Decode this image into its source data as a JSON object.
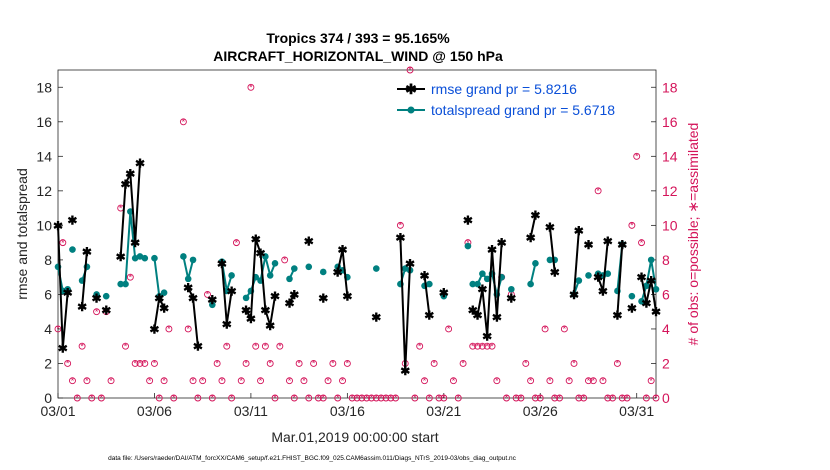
{
  "chart_data": {
    "type": "line",
    "title": "Tropics 374 / 393 = 95.165%",
    "subtitle": "AIRCRAFT_HORIZONTAL_WIND @ 150 hPa",
    "xlabel": "Mar.01,2019 00:00:00 start",
    "ylabel_left": "rmse and totalspread",
    "ylabel_right": "# of obs: o=possible; ∗=assimilated",
    "xlim": [
      1,
      32
    ],
    "ylim_left": [
      0,
      19
    ],
    "ylim_right": [
      0,
      19
    ],
    "x_tick_labels": [
      "03/01",
      "03/06",
      "03/11",
      "03/16",
      "03/21",
      "03/26",
      "03/31"
    ],
    "x_tick_values": [
      1,
      6,
      11,
      16,
      21,
      26,
      31
    ],
    "y_ticks_left": [
      0,
      2,
      4,
      6,
      8,
      10,
      12,
      14,
      16,
      18
    ],
    "y_ticks_right": [
      0,
      2,
      4,
      6,
      8,
      10,
      12,
      14,
      16,
      18
    ],
    "grid": false,
    "legend_position": "top-right",
    "colors": {
      "rmse": "#000000",
      "totalspread": "#008080",
      "obs": "#d4145a",
      "legend_text": "#0a4fd8"
    },
    "series": [
      {
        "name": "rmse grand pr = 5.8216",
        "segments": [
          {
            "x": [
              1.0,
              1.25,
              1.5
            ],
            "y": [
              10.0,
              2.9,
              6.1
            ]
          },
          {
            "x": [
              1.75
            ],
            "y": [
              10.3
            ]
          },
          {
            "x": [
              2.25,
              2.5
            ],
            "y": [
              5.3,
              8.5
            ]
          },
          {
            "x": [
              3.0
            ],
            "y": [
              5.8
            ]
          },
          {
            "x": [
              3.5
            ],
            "y": [
              5.1
            ]
          },
          {
            "x": [
              4.25,
              4.5,
              4.75,
              5.0,
              5.25
            ],
            "y": [
              8.2,
              12.4,
              13.0,
              9.0,
              13.6
            ]
          },
          {
            "x": [
              6.0,
              6.25,
              6.5
            ],
            "y": [
              4.0,
              5.8,
              5.2
            ]
          },
          {
            "x": [
              7.75,
              8.0,
              8.25
            ],
            "y": [
              6.4,
              5.8,
              3.0
            ]
          },
          {
            "x": [
              9.0
            ],
            "y": [
              5.7
            ]
          },
          {
            "x": [
              9.5,
              9.75,
              10.0
            ],
            "y": [
              7.8,
              4.3,
              6.2
            ]
          },
          {
            "x": [
              10.75,
              11.0,
              11.25,
              11.5,
              11.75,
              12.0,
              12.25
            ],
            "y": [
              5.1,
              4.6,
              9.2,
              8.4,
              5.1,
              4.2,
              5.9
            ]
          },
          {
            "x": [
              13.0,
              13.25
            ],
            "y": [
              5.5,
              6.0
            ]
          },
          {
            "x": [
              14.0
            ],
            "y": [
              9.1
            ]
          },
          {
            "x": [
              14.75
            ],
            "y": [
              5.8
            ]
          },
          {
            "x": [
              15.5,
              15.75,
              16.0
            ],
            "y": [
              7.3,
              8.6,
              5.9
            ]
          },
          {
            "x": [
              17.5
            ],
            "y": [
              4.7
            ]
          },
          {
            "x": [
              18.75,
              19.0,
              19.25
            ],
            "y": [
              9.3,
              1.6,
              7.8
            ]
          },
          {
            "x": [
              20.0,
              20.25
            ],
            "y": [
              7.1,
              4.8
            ]
          },
          {
            "x": [
              21.0
            ],
            "y": [
              6.1
            ]
          },
          {
            "x": [
              22.25
            ],
            "y": [
              10.3
            ]
          },
          {
            "x": [
              22.5,
              22.75,
              23.0,
              23.25,
              23.5,
              23.75,
              24.0
            ],
            "y": [
              5.1,
              4.8,
              6.3,
              3.6,
              8.6,
              4.7,
              9.0
            ]
          },
          {
            "x": [
              24.5
            ],
            "y": [
              5.8
            ]
          },
          {
            "x": [
              25.5,
              25.75
            ],
            "y": [
              9.3,
              10.6
            ]
          },
          {
            "x": [
              26.5,
              26.75
            ],
            "y": [
              9.9,
              7.3
            ]
          },
          {
            "x": [
              27.75,
              28.0
            ],
            "y": [
              6.0,
              9.7
            ]
          },
          {
            "x": [
              28.5
            ],
            "y": [
              8.9
            ]
          },
          {
            "x": [
              29.0,
              29.25,
              29.5
            ],
            "y": [
              7.0,
              6.2,
              9.1
            ]
          },
          {
            "x": [
              30.0,
              30.25
            ],
            "y": [
              4.8,
              8.9
            ]
          },
          {
            "x": [
              30.75
            ],
            "y": [
              5.2
            ]
          },
          {
            "x": [
              31.25,
              31.5,
              31.75,
              32.0
            ],
            "y": [
              7.0,
              5.5,
              6.8,
              5.0
            ]
          }
        ]
      },
      {
        "name": "totalspread grand pr = 5.6718",
        "segments": [
          {
            "x": [
              1.0,
              1.25,
              1.5
            ],
            "y": [
              7.6,
              6.2,
              6.3
            ]
          },
          {
            "x": [
              1.75
            ],
            "y": [
              8.6
            ]
          },
          {
            "x": [
              2.25,
              2.5
            ],
            "y": [
              6.8,
              7.6
            ]
          },
          {
            "x": [
              3.0
            ],
            "y": [
              6.0
            ]
          },
          {
            "x": [
              3.5
            ],
            "y": [
              5.9
            ]
          },
          {
            "x": [
              4.25,
              4.5,
              4.75,
              5.0,
              5.25,
              5.5
            ],
            "y": [
              6.6,
              6.6,
              10.8,
              8.1,
              8.2,
              8.1
            ]
          },
          {
            "x": [
              6.0,
              6.25,
              6.5
            ],
            "y": [
              8.1,
              5.9,
              6.1
            ]
          },
          {
            "x": [
              7.5,
              7.75,
              8.0
            ],
            "y": [
              8.2,
              6.9,
              8.0
            ]
          },
          {
            "x": [
              9.0
            ],
            "y": [
              5.4
            ]
          },
          {
            "x": [
              9.5,
              9.75,
              10.0
            ],
            "y": [
              7.9,
              6.2,
              7.1
            ]
          },
          {
            "x": [
              10.75,
              11.0,
              11.25,
              11.5,
              11.75,
              12.0,
              12.25
            ],
            "y": [
              5.8,
              6.2,
              7.0,
              6.8,
              8.2,
              7.1,
              7.8
            ]
          },
          {
            "x": [
              13.0,
              13.25
            ],
            "y": [
              6.9,
              7.5
            ]
          },
          {
            "x": [
              14.0
            ],
            "y": [
              7.6
            ]
          },
          {
            "x": [
              14.75
            ],
            "y": [
              7.3
            ]
          },
          {
            "x": [
              15.5,
              15.75,
              16.0
            ],
            "y": [
              7.6,
              7.4,
              7.0
            ]
          },
          {
            "x": [
              17.5
            ],
            "y": [
              7.5
            ]
          },
          {
            "x": [
              18.75,
              19.0,
              19.25
            ],
            "y": [
              6.6,
              7.5,
              7.4
            ]
          },
          {
            "x": [
              20.0,
              20.25
            ],
            "y": [
              6.5,
              6.6
            ]
          },
          {
            "x": [
              21.0
            ],
            "y": [
              5.9
            ]
          },
          {
            "x": [
              22.25
            ],
            "y": [
              8.8
            ]
          },
          {
            "x": [
              22.5,
              22.75,
              23.0,
              23.25,
              23.5,
              23.75,
              24.0
            ],
            "y": [
              6.6,
              6.6,
              7.2,
              6.9,
              7.2,
              6.0,
              7.0
            ]
          },
          {
            "x": [
              24.5
            ],
            "y": [
              6.3
            ]
          },
          {
            "x": [
              25.5,
              25.75
            ],
            "y": [
              6.6,
              7.8
            ]
          },
          {
            "x": [
              26.5,
              26.75
            ],
            "y": [
              8.0,
              8.0
            ]
          },
          {
            "x": [
              27.75,
              28.0
            ],
            "y": [
              6.0,
              6.8
            ]
          },
          {
            "x": [
              28.5
            ],
            "y": [
              7.1
            ]
          },
          {
            "x": [
              29.0,
              29.25,
              29.5
            ],
            "y": [
              7.2,
              7.1,
              7.2
            ]
          },
          {
            "x": [
              30.0,
              30.25
            ],
            "y": [
              6.2,
              8.9
            ]
          },
          {
            "x": [
              30.75
            ],
            "y": [
              5.9
            ]
          },
          {
            "x": [
              31.25,
              31.5,
              31.75,
              32.0
            ],
            "y": [
              5.6,
              6.5,
              8.0,
              6.3
            ]
          }
        ]
      },
      {
        "name": "obs possible",
        "axis": "right",
        "marker": "circle",
        "x": [
          1.0,
          1.25,
          1.5,
          1.75,
          2.0,
          2.25,
          2.5,
          2.75,
          3.0,
          3.25,
          3.5,
          3.75,
          4.25,
          4.5,
          4.75,
          5.0,
          5.25,
          5.5,
          5.75,
          6.0,
          6.25,
          6.5,
          6.75,
          7.0,
          7.5,
          7.75,
          8.0,
          8.25,
          8.5,
          8.75,
          9.0,
          9.25,
          9.5,
          9.75,
          10.0,
          10.25,
          10.5,
          10.75,
          11.0,
          11.25,
          11.5,
          11.75,
          12.0,
          12.25,
          12.5,
          12.75,
          13.0,
          13.25,
          13.5,
          13.75,
          14.0,
          14.25,
          14.5,
          14.75,
          15.0,
          15.25,
          15.5,
          15.75,
          16.0,
          16.25,
          16.5,
          16.75,
          17.0,
          17.25,
          17.5,
          17.75,
          18.0,
          18.25,
          18.5,
          18.75,
          19.0,
          19.25,
          19.5,
          19.75,
          20.0,
          20.25,
          20.5,
          20.75,
          21.0,
          21.25,
          21.5,
          21.75,
          22.0,
          22.25,
          22.5,
          22.75,
          23.0,
          23.25,
          23.5,
          23.75,
          24.0,
          24.25,
          24.5,
          24.75,
          25.0,
          25.25,
          25.5,
          25.75,
          26.0,
          26.25,
          26.5,
          26.75,
          27.0,
          27.25,
          27.5,
          27.75,
          28.0,
          28.25,
          28.5,
          28.75,
          29.0,
          29.25,
          29.5,
          29.75,
          30.0,
          30.25,
          30.5,
          30.75,
          31.0,
          31.25,
          31.5,
          31.75,
          32.0
        ],
        "y": [
          4,
          9,
          2,
          1,
          0,
          3,
          1,
          0,
          5,
          0,
          5,
          1,
          11,
          3,
          7,
          2,
          2,
          2,
          1,
          2,
          0,
          1,
          4,
          0,
          16,
          4,
          1,
          0,
          1,
          6,
          0,
          2,
          1,
          3,
          0,
          9,
          1,
          2,
          18,
          3,
          1,
          3,
          2,
          0,
          3,
          8,
          1,
          0,
          2,
          1,
          0,
          2,
          0,
          0,
          1,
          2,
          0,
          1,
          2,
          0,
          0,
          0,
          0,
          0,
          0,
          0,
          0,
          0,
          0,
          10,
          2,
          19,
          0,
          3,
          1,
          0,
          2,
          0,
          0,
          4,
          1,
          0,
          2,
          9,
          3,
          3,
          3,
          3,
          3,
          1,
          7,
          0,
          6,
          0,
          0,
          2,
          1,
          0,
          0,
          4,
          1,
          0,
          0,
          4,
          1,
          2,
          0,
          0,
          1,
          1,
          12,
          1,
          0,
          0,
          2,
          0,
          0,
          10,
          14,
          9,
          0,
          1,
          0
        ]
      }
    ]
  },
  "footnote": "data file: /Users/raeder/DAI/ATM_forcXX/CAM6_setup/f.e21.FHIST_BGC.f09_025.CAM6assim.011/Diags_NTrS_2019-03/obs_diag_output.nc"
}
